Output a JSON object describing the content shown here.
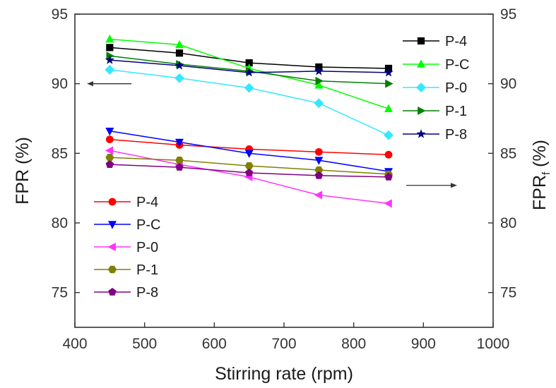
{
  "chart_data": {
    "type": "line",
    "xlabel": "Stirring rate (rpm)",
    "ylabel": "FPR (%)",
    "ylabel_right": {
      "main": "FPR",
      "subscript": "f",
      "suffix": " (%)"
    },
    "xlim": [
      400,
      1000
    ],
    "ylim": [
      72.5,
      95
    ],
    "x_ticks": [
      400,
      500,
      600,
      700,
      800,
      900,
      1000
    ],
    "y_ticks": [
      75,
      80,
      85,
      90,
      95
    ],
    "grid": false,
    "x": [
      450,
      550,
      650,
      750,
      850
    ],
    "series_groups": [
      {
        "axis": "right",
        "arrow_direction": "left",
        "legend_placement": "top-right",
        "series": [
          {
            "name": "P-4",
            "color": "#000000",
            "marker": "square",
            "values": [
              92.6,
              92.2,
              91.5,
              91.2,
              91.1
            ]
          },
          {
            "name": "P-C",
            "color": "#00ff00",
            "marker": "triangle-up",
            "values": [
              93.2,
              92.8,
              91.1,
              89.9,
              88.2
            ]
          },
          {
            "name": "P-0",
            "color": "#33e8ff",
            "marker": "diamond",
            "values": [
              91.0,
              90.4,
              89.7,
              88.6,
              86.3
            ]
          },
          {
            "name": "P-1",
            "color": "#008000",
            "marker": "triangle-right",
            "values": [
              92.0,
              91.4,
              90.9,
              90.2,
              90.0
            ]
          },
          {
            "name": "P-8",
            "color": "#000080",
            "marker": "star",
            "values": [
              91.7,
              91.3,
              90.8,
              90.9,
              90.8
            ]
          }
        ]
      },
      {
        "axis": "left",
        "arrow_direction": "right",
        "legend_placement": "bottom-left",
        "series": [
          {
            "name": "P-4",
            "color": "#ff0000",
            "marker": "circle",
            "values": [
              86.0,
              85.6,
              85.3,
              85.1,
              84.9
            ]
          },
          {
            "name": "P-C",
            "color": "#0000ff",
            "marker": "triangle-down",
            "values": [
              86.6,
              85.8,
              85.0,
              84.5,
              83.7
            ]
          },
          {
            "name": "P-0",
            "color": "#ff33ff",
            "marker": "triangle-left",
            "values": [
              85.2,
              84.2,
              83.3,
              82.0,
              81.4
            ]
          },
          {
            "name": "P-1",
            "color": "#808000",
            "marker": "hexagon",
            "values": [
              84.7,
              84.5,
              84.1,
              83.8,
              83.5
            ]
          },
          {
            "name": "P-8",
            "color": "#800080",
            "marker": "pentagon",
            "values": [
              84.2,
              84.0,
              83.6,
              83.4,
              83.3
            ]
          }
        ]
      }
    ]
  }
}
